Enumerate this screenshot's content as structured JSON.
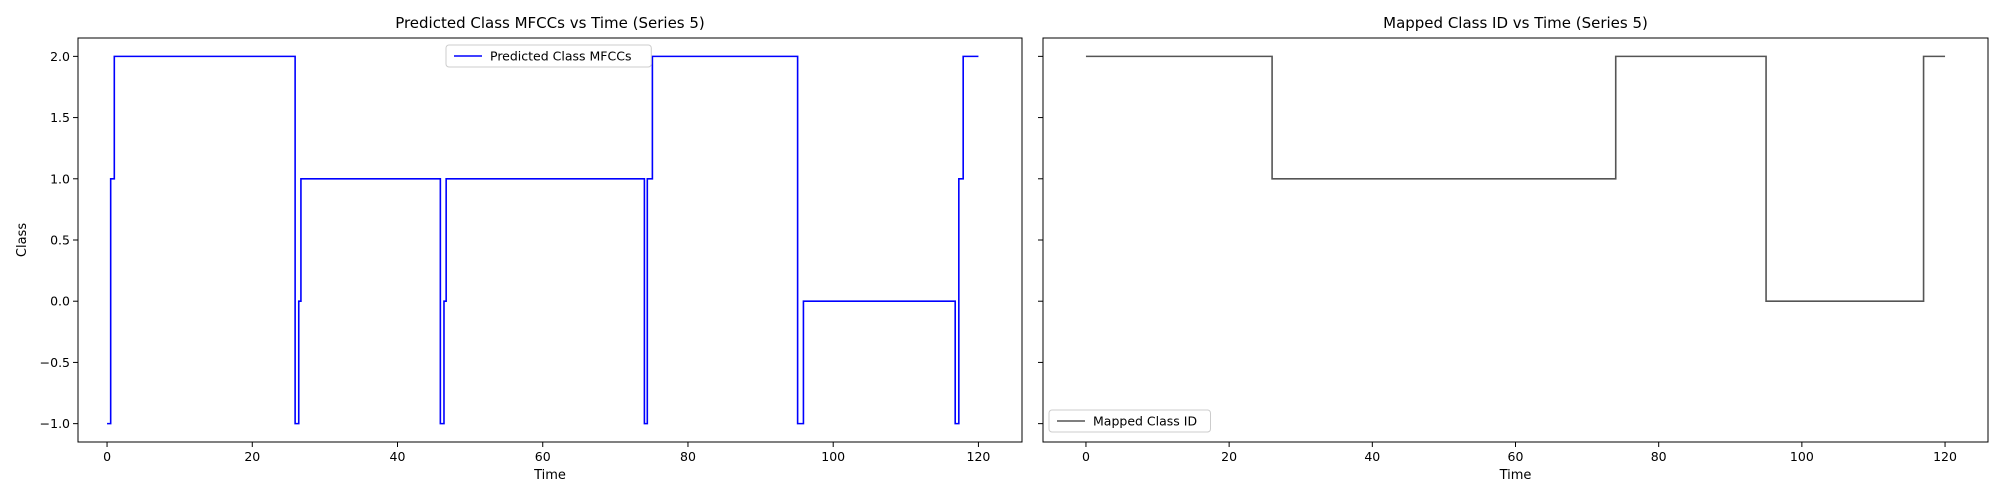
{
  "chart_data": [
    {
      "type": "line",
      "step": true,
      "title": "Predicted Class MFCCs vs Time (Series 5)",
      "xlabel": "Time",
      "ylabel": "Class",
      "xlim": [
        -4,
        126
      ],
      "ylim": [
        -1.15,
        2.15
      ],
      "xticks": [
        0,
        20,
        40,
        60,
        80,
        100,
        120
      ],
      "yticks": [
        -1.0,
        -0.5,
        0.0,
        0.5,
        1.0,
        1.5,
        2.0
      ],
      "ytick_labels": [
        "−1.0",
        "−0.5",
        "0.0",
        "0.5",
        "1.0",
        "1.5",
        "2.0"
      ],
      "show_y_tick_labels": true,
      "grid": false,
      "legend_position": "top-center",
      "series": [
        {
          "name": "Predicted Class MFCCs",
          "color": "#0000ff",
          "x": [
            0,
            0.5,
            1,
            25.9,
            26.4,
            26.7,
            45.9,
            46.4,
            46.7,
            74.0,
            74.4,
            75.1,
            95.1,
            95.9,
            116.8,
            117.3,
            117.9,
            120
          ],
          "y": [
            -1,
            1,
            2,
            -1,
            0,
            1,
            -1,
            0,
            1,
            -1,
            1,
            2,
            -1,
            0,
            -1,
            1,
            2,
            2
          ]
        }
      ]
    },
    {
      "type": "line",
      "step": true,
      "title": "Mapped Class ID vs Time (Series 5)",
      "xlabel": "Time",
      "ylabel": "",
      "xlim": [
        -6,
        126
      ],
      "ylim": [
        -1.15,
        2.15
      ],
      "xticks": [
        0,
        20,
        40,
        60,
        80,
        100,
        120
      ],
      "yticks": [
        -1.0,
        -0.5,
        0.0,
        0.5,
        1.0,
        1.5,
        2.0
      ],
      "show_y_tick_labels": false,
      "grid": false,
      "legend_position": "bottom-left",
      "series": [
        {
          "name": "Mapped Class ID",
          "color": "#555555",
          "x": [
            0,
            26,
            74,
            95,
            117,
            120
          ],
          "y": [
            2,
            1,
            2,
            0,
            2,
            2
          ]
        }
      ]
    }
  ]
}
